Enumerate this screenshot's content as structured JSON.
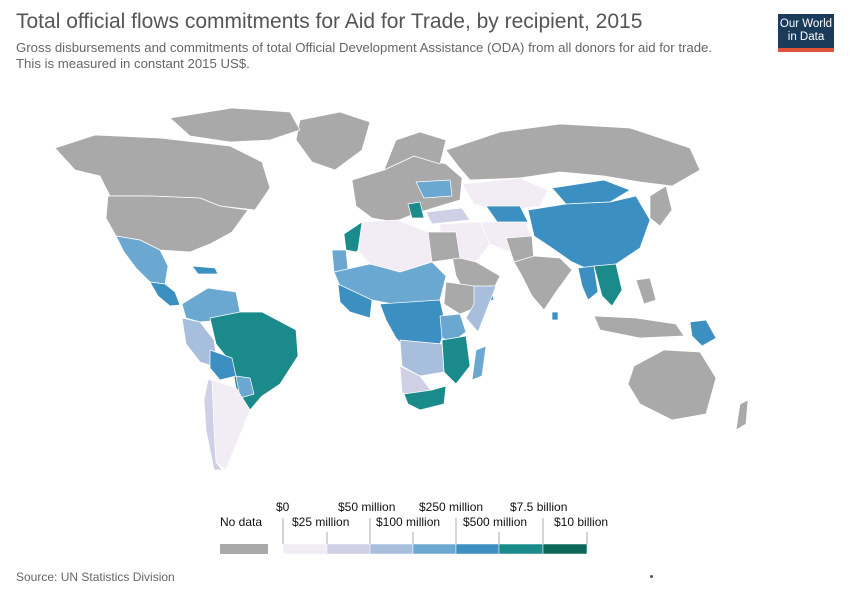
{
  "header": {
    "title": "Total official flows commitments for Aid for Trade, by recipient, 2015",
    "subtitle": "Gross disbursements and commitments of total Official Development Assistance (ODA) from all donors for aid for trade. This is measured in constant 2015 US$."
  },
  "logo": {
    "line1": "Our World",
    "line2": "in Data",
    "colors": {
      "background": "#1a3b5a",
      "accent": "#e0533b"
    }
  },
  "legend": {
    "no_data_label": "No data",
    "no_data_color": "#a9a9a9",
    "tick_labels_top": [
      "$0",
      "$50 million",
      "$250 million",
      "$7.5 billion"
    ],
    "tick_labels_bottom": [
      "$25 million",
      "$100 million",
      "$500 million",
      "$10 billion"
    ],
    "bin_colors": [
      "#f2ecf5",
      "#cfcfe5",
      "#a8bedd",
      "#6aa8d2",
      "#3b8fc1",
      "#1a8a8a",
      "#0c6858"
    ]
  },
  "source": "Source: UN Statistics Division"
}
